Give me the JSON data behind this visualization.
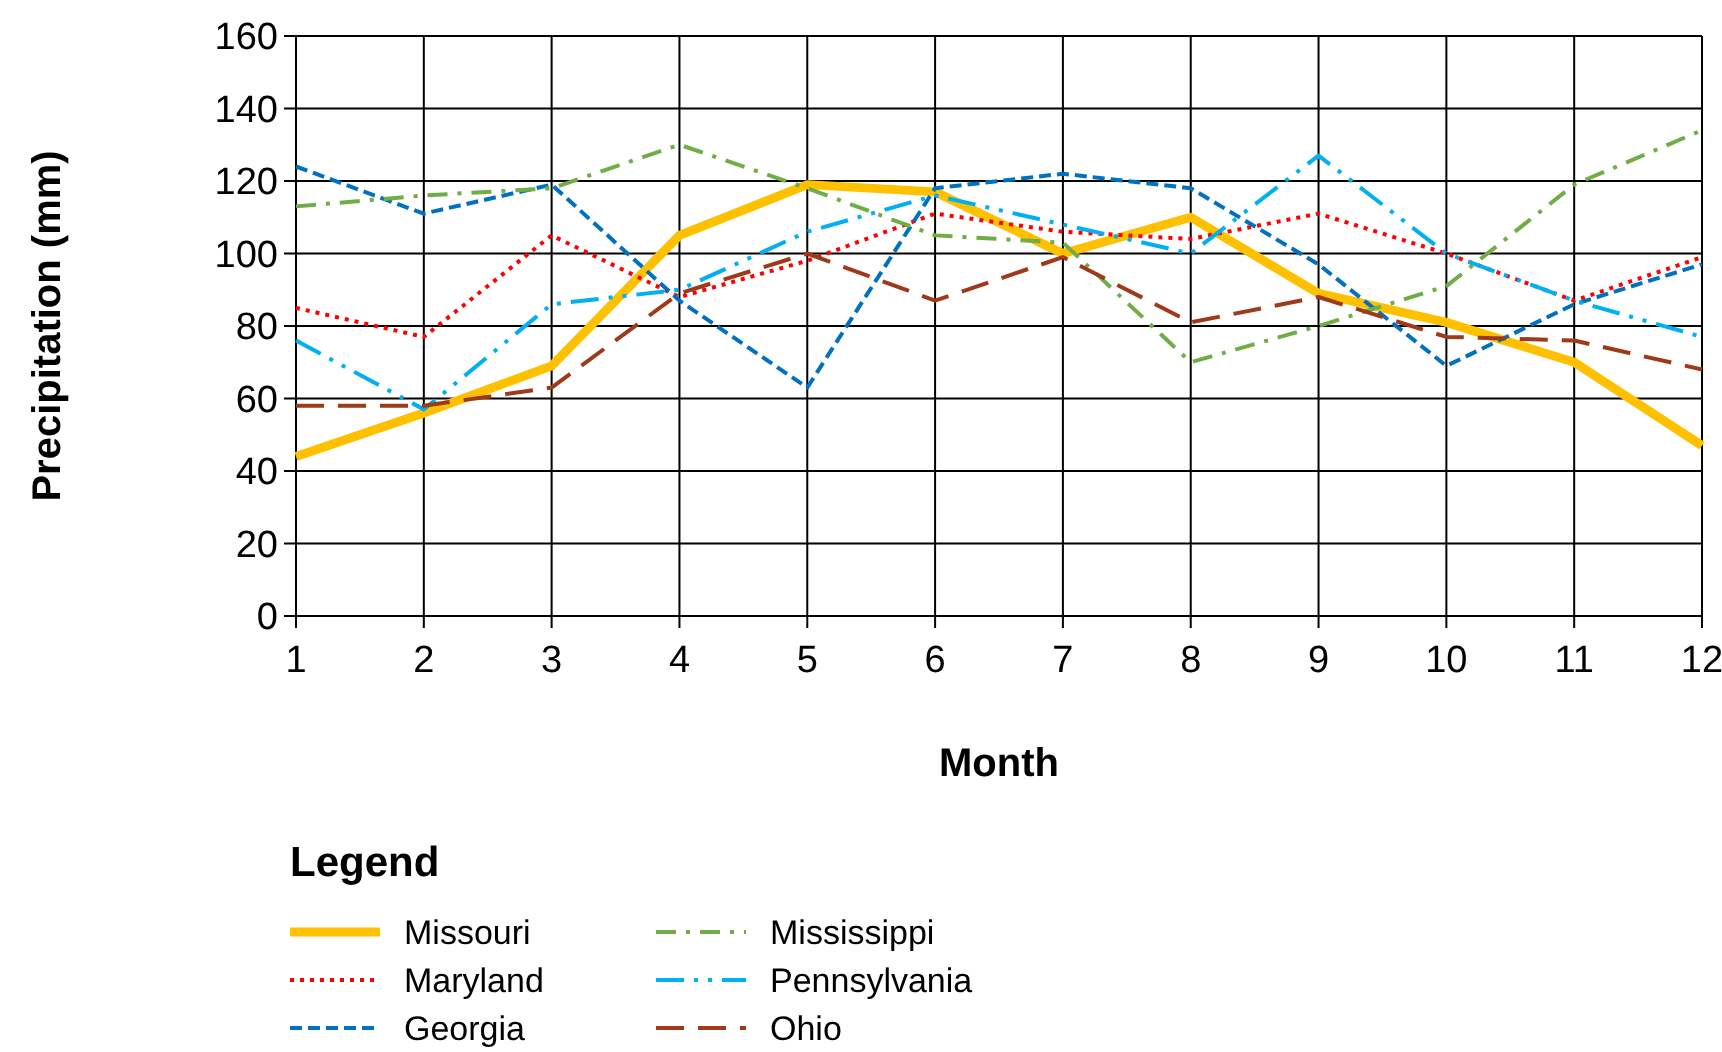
{
  "chart_data": {
    "type": "line",
    "xlabel": "Month",
    "ylabel": "Precipitation (mm)",
    "legend_title": "Legend",
    "x": [
      1,
      2,
      3,
      4,
      5,
      6,
      7,
      8,
      9,
      10,
      11,
      12
    ],
    "xlim": [
      1,
      12
    ],
    "xticks": [
      1,
      2,
      3,
      4,
      5,
      6,
      7,
      8,
      9,
      10,
      11,
      12
    ],
    "ylim": [
      0,
      160
    ],
    "yticks": [
      0,
      20,
      40,
      60,
      80,
      100,
      120,
      140,
      160
    ],
    "grid": true,
    "legend": "bottom",
    "series": [
      {
        "name": "Missouri",
        "color": "#ffc000",
        "line_style": "solid",
        "values": [
          44,
          56,
          69,
          105,
          119,
          117,
          100,
          110,
          89,
          81,
          70,
          47
        ]
      },
      {
        "name": "Maryland",
        "color": "#ff0000",
        "line_style": "dotted",
        "values": [
          85,
          77,
          105,
          88,
          98,
          111,
          106,
          104,
          111,
          100,
          87,
          99
        ]
      },
      {
        "name": "Georgia",
        "color": "#0070c0",
        "line_style": "dashed",
        "values": [
          124,
          111,
          119,
          87,
          63,
          118,
          122,
          118,
          97,
          69,
          86,
          97
        ]
      },
      {
        "name": "Mississippi",
        "color": "#70ad47",
        "line_style": "dashdot",
        "values": [
          113,
          116,
          118,
          130,
          118,
          105,
          103,
          70,
          80,
          91,
          119,
          134
        ]
      },
      {
        "name": "Pennsylvania",
        "color": "#00b0f0",
        "line_style": "dashdotdot",
        "values": [
          76,
          57,
          86,
          90,
          106,
          116,
          108,
          100,
          127,
          100,
          87,
          77
        ]
      },
      {
        "name": "Ohio",
        "color": "#9e3a1a",
        "line_style": "longdash",
        "values": [
          58,
          58,
          63,
          89,
          100,
          87,
          99,
          81,
          88,
          77,
          76,
          68
        ]
      }
    ]
  }
}
